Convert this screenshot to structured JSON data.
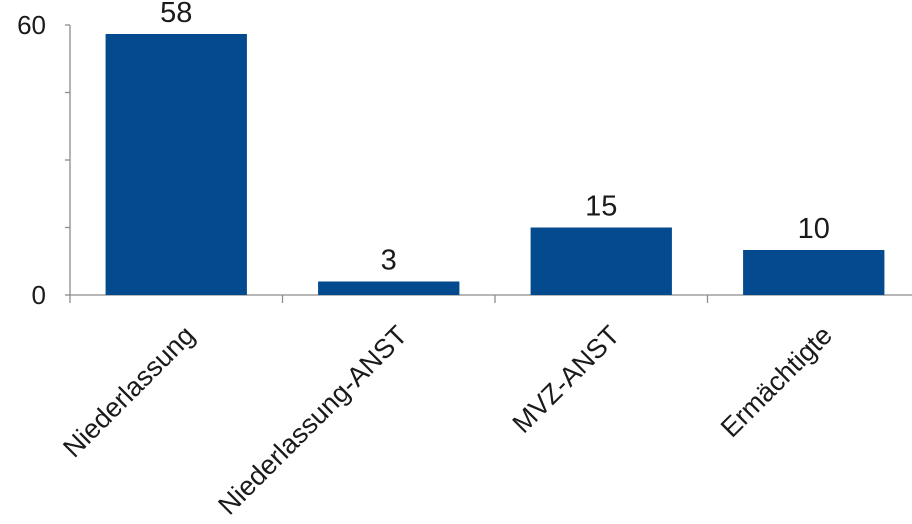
{
  "chart_data": {
    "type": "bar",
    "title": "",
    "xlabel": "",
    "ylabel": "",
    "categories": [
      "Niederlassung",
      "Niederlassung-ANST",
      "MVZ-ANST",
      "Ermächtigte"
    ],
    "values": [
      58,
      3,
      15,
      10
    ],
    "data_labels": [
      "58",
      "3",
      "15",
      "10"
    ],
    "ylim": [
      0,
      60
    ],
    "y_ticks_labeled": [
      "0",
      "60"
    ],
    "grid": false,
    "legend": "none",
    "colors": {
      "bar": "#034A8E",
      "axis": "#8C8C8C",
      "text": "#1A1A1A"
    }
  }
}
